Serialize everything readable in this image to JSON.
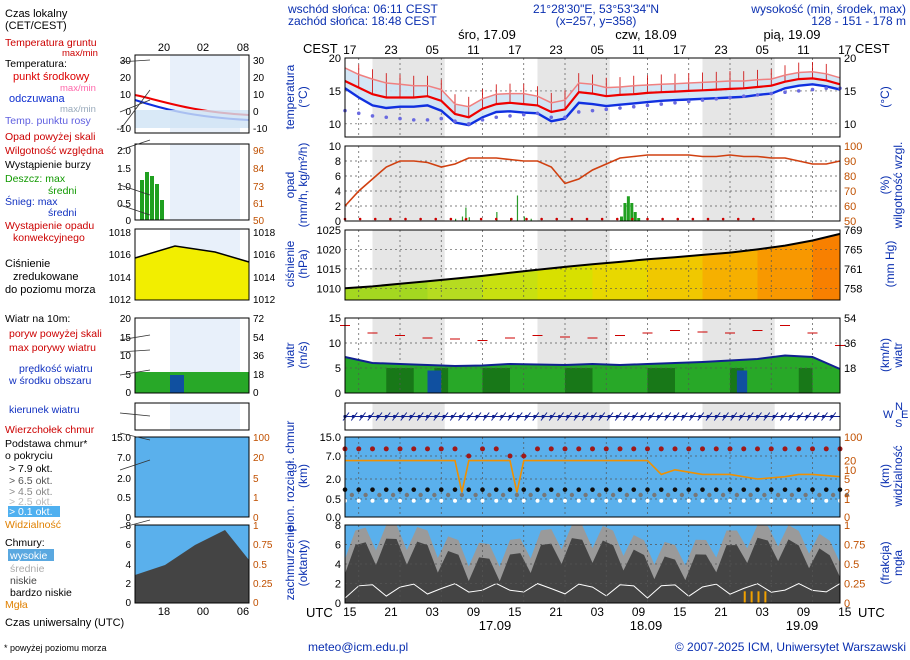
{
  "header": {
    "sunrise": "wschód słońca: 06:11 CEST",
    "sunset": "zachód słońca: 18:48 CEST",
    "coords": "21°28'30\"E, 53°53'34\"N",
    "grid": "(x=257, y=358)",
    "alt_label": "wysokość (min, środek, max)",
    "alt_values": "128 - 151 - 178 m"
  },
  "top_axis": {
    "tz": "CEST",
    "hours": [
      "17",
      "23",
      "05",
      "11",
      "17",
      "23",
      "05",
      "11",
      "17",
      "23",
      "05",
      "11",
      "17"
    ],
    "days": [
      "śro, 17.09",
      "czw, 18.09",
      "pią, 19.09"
    ]
  },
  "bottom_axis": {
    "tz": "UTC",
    "hours": [
      "15",
      "21",
      "03",
      "09",
      "15",
      "21",
      "03",
      "09",
      "15",
      "21",
      "03",
      "09",
      "15"
    ],
    "dates": [
      "17.09",
      "18.09",
      "19.09"
    ]
  },
  "footer": {
    "contact": "meteo@icm.edu.pl",
    "copyright": "© 2007-2025 ICM, Uniwersytet Warszawski",
    "note": "* powyżej poziomu morza"
  },
  "legend": {
    "local_time": "Czas lokalny",
    "local_time_tz": "(CET/CEST)",
    "lt_ticks": [
      "20",
      "02",
      "08"
    ],
    "soil": "Temperatura gruntu",
    "soil_mm": "max/min",
    "temp": "Temperatura:",
    "temp_mid": "punkt środkowy",
    "temp_mid_mm": "max/min",
    "apparent": "odczuwana",
    "apparent_mm": "max/min",
    "dew": "Temp. punktu rosy",
    "precip_above": "Opad powyżej skali",
    "humidity": "Wilgotność względna",
    "storm": "Wystąpienie burzy",
    "rain_max": "Deszcz: max",
    "rain_mean": "średni",
    "snow_max": "Śnieg:     max",
    "snow_mean": "średni",
    "convective_1": "Wystąpienie opadu",
    "convective_2": "konwekcyjnego",
    "pressure_1": "Ciśnienie",
    "pressure_2": "zredukowane",
    "pressure_3": "do poziomu morza",
    "wind": "Wiatr na 10m:",
    "gust_above": "poryw powyżej skali",
    "gust_max": "max porywy wiatru",
    "wind_speed_1": "prędkość wiatru",
    "wind_speed_2": "w środku obszaru",
    "wind_dir": "kierunek wiatru",
    "cloud_top": "Wierzchołek chmur",
    "cloud_base_1": "Podstawa chmur*",
    "cloud_base_2": "o pokryciu",
    "okt": [
      "> 7.9 okt.",
      "> 6.5 okt.",
      "> 4.5 okt.",
      "> 2.5 okt.",
      "> 0.1 okt."
    ],
    "visibility": "Widzialność",
    "clouds": "Chmury:",
    "cl_high": "wysokie",
    "cl_mid": "średnie",
    "cl_low": "niskie",
    "cl_vlow": "bardzo niskie",
    "fog": "Mgła",
    "utc": "Czas uniwersalny (UTC)",
    "ut_ticks": [
      "18",
      "00",
      "06"
    ]
  },
  "labels": {
    "temp_l": "temperatura",
    "temp_u": "(°C)",
    "prec_l": "opad",
    "prec_u": "(mm/h, kg/m²/h)",
    "hum_r": "wilgotność wzgl.",
    "hum_u": "(%)",
    "pres_l": "ciśnienie",
    "pres_u": "(hPa)",
    "pres_r": "(mm Hg)",
    "wind_l": "wiatr",
    "wind_u": "(m/s)",
    "wind_r": "wiatr",
    "wind_ru": "(km/h)",
    "cb_l1": "pion. rozciągł. chmur",
    "cb_l2": "(km)",
    "vis_r": "widzialność",
    "vis_ru": "(km)",
    "cc_l1": "zachmurzenie",
    "cc_l2": "(oktanty)",
    "cc_r1": "mgła",
    "cc_r2": "(frakcja)",
    "compass_w": "W",
    "compass_n": "N",
    "compass_s": "S",
    "compass_e": "E"
  },
  "chart_data": [
    {
      "type": "line",
      "title": "temperatura",
      "ylabel": "(°C)",
      "ylim": [
        8,
        20
      ],
      "yticks": [
        "10",
        "15",
        "20"
      ],
      "x_hours_from_start": [
        0,
        2,
        4,
        6,
        8,
        10,
        12,
        14,
        16,
        18,
        20,
        22,
        24,
        26,
        28,
        30,
        32,
        34,
        36,
        38,
        40,
        42,
        44,
        46,
        48,
        50,
        52,
        54,
        56,
        58,
        60,
        62,
        64,
        66,
        68,
        70,
        72
      ],
      "series": [
        {
          "name": "max",
          "values": [
            18.5,
            17.5,
            16.8,
            16.2,
            16.0,
            15.8,
            15.8,
            15.2,
            13.0,
            12.6,
            13.8,
            14.5,
            14.6,
            14.6,
            14.2,
            13.2,
            13.6,
            16.2,
            16.0,
            15.5,
            15.6,
            15.8,
            15.9,
            16.0,
            16.1,
            16.2,
            16.3,
            16.4,
            16.5,
            16.5,
            16.7,
            16.8,
            17.4,
            17.8,
            17.9,
            17.6,
            17.0
          ]
        },
        {
          "name": "punkt środkowy",
          "values": [
            16.5,
            15.5,
            14.5,
            14.0,
            14.0,
            14.0,
            14.2,
            13.5,
            11.5,
            11.0,
            12.3,
            13.0,
            13.2,
            13.0,
            12.8,
            11.8,
            12.2,
            14.8,
            14.6,
            14.2,
            14.4,
            14.5,
            14.7,
            14.8,
            14.9,
            15.0,
            15.1,
            15.2,
            15.3,
            15.4,
            15.6,
            15.8,
            16.4,
            16.8,
            16.9,
            16.6,
            16.0
          ]
        },
        {
          "name": "odczuwana",
          "values": [
            15.4,
            14.0,
            12.8,
            12.4,
            12.6,
            12.6,
            12.8,
            12.0,
            10.2,
            9.8,
            11.0,
            11.8,
            11.9,
            11.7,
            11.6,
            10.4,
            10.8,
            13.2,
            13.0,
            12.7,
            12.9,
            13.1,
            13.3,
            13.5,
            13.6,
            13.7,
            13.8,
            13.9,
            14.0,
            14.1,
            14.4,
            14.6,
            15.4,
            15.8,
            16.0,
            15.7,
            15.2
          ]
        },
        {
          "name": "punkt rosy",
          "values": [
            12.0,
            11.6,
            11.2,
            11.0,
            10.8,
            10.6,
            10.6,
            10.8,
            10.4,
            10.0,
            10.6,
            11.0,
            11.2,
            11.4,
            11.6,
            11.0,
            11.0,
            11.8,
            12.0,
            12.2,
            12.4,
            12.6,
            12.8,
            13.0,
            13.2,
            13.4,
            13.6,
            13.8,
            14.0,
            14.2,
            14.4,
            14.6,
            14.8,
            15.0,
            15.2,
            15.4,
            15.4
          ]
        }
      ]
    },
    {
      "type": "bar",
      "title": "opad",
      "ylabel": "(mm/h, kg/m²/h)",
      "ylim": [
        0,
        10
      ],
      "yticks": [
        "0",
        "2",
        "4",
        "6",
        "8",
        "10"
      ],
      "rain_bars_hour_value": [
        [
          40,
          0.6
        ],
        [
          40.5,
          2.4
        ],
        [
          41,
          3.3
        ],
        [
          41.5,
          2.4
        ],
        [
          42,
          1.2
        ],
        [
          42.5,
          0.4
        ]
      ],
      "humidity_right": {
        "ylim": [
          50,
          100
        ],
        "yticks": [
          "50",
          "60",
          "70",
          "80",
          "90",
          "100"
        ],
        "x_hours_from_start": [
          0,
          2,
          4,
          6,
          8,
          10,
          12,
          14,
          16,
          18,
          20,
          22,
          24,
          26,
          28,
          30,
          32,
          34,
          36,
          38,
          40,
          42,
          44,
          46,
          48,
          50,
          52,
          54,
          56,
          58,
          60,
          62,
          64,
          66,
          68,
          70,
          72
        ],
        "values": [
          60,
          70,
          78,
          86,
          90,
          90,
          89,
          86,
          88,
          92,
          92,
          92,
          91,
          90,
          90,
          86,
          75,
          78,
          84,
          88,
          92,
          93,
          94,
          94,
          94,
          94,
          93,
          93,
          94,
          93,
          93,
          92,
          92,
          90,
          88,
          88,
          90
        ]
      }
    },
    {
      "type": "area",
      "title": "ciśnienie",
      "ylabel": "(hPa)",
      "ylim": [
        1007,
        1025
      ],
      "yticks": [
        "1010",
        "1015",
        "1020",
        "1025"
      ],
      "right_ticks_mmhg": [
        "758",
        "761",
        "765",
        "769"
      ],
      "x_hours_from_start": [
        0,
        4,
        8,
        12,
        16,
        20,
        24,
        28,
        32,
        36,
        40,
        44,
        48,
        52,
        56,
        60,
        64,
        68,
        72
      ],
      "values": [
        1010.0,
        1010.5,
        1011.2,
        1011.8,
        1012.5,
        1013.2,
        1014.0,
        1014.8,
        1015.5,
        1016.2,
        1016.8,
        1017.5,
        1018.0,
        1018.6,
        1019.2,
        1020.0,
        1021.0,
        1022.3,
        1024.0
      ]
    },
    {
      "type": "line",
      "title": "wiatr",
      "ylabel": "(m/s)",
      "ylim": [
        0,
        15
      ],
      "yticks": [
        "0",
        "5",
        "10",
        "15"
      ],
      "right_ticks_kmh": [
        "18",
        "36",
        "54"
      ],
      "x_hours_from_start": [
        0,
        4,
        8,
        12,
        16,
        20,
        24,
        28,
        32,
        36,
        40,
        44,
        48,
        52,
        56,
        60,
        64,
        68,
        72
      ],
      "wind_speed": [
        7.2,
        6.0,
        5.8,
        5.6,
        5.4,
        5.5,
        5.8,
        5.7,
        5.6,
        5.8,
        5.6,
        5.8,
        6.0,
        6.2,
        6.5,
        6.8,
        7.5,
        7.2,
        4.8
      ],
      "gusts": [
        13.5,
        12.0,
        11.5,
        11.0,
        10.8,
        10.5,
        11.0,
        11.5,
        11.2,
        11.0,
        11.5,
        12.0,
        12.5,
        12.2,
        12.0,
        12.5,
        13.5,
        12.0,
        9.5
      ]
    },
    {
      "type": "scatter",
      "title": "pion. rozciągł. chmur",
      "ylabel": "(km)",
      "ylim": [
        0,
        15
      ],
      "yticks": [
        "0.0",
        "0.5",
        "2.0",
        "7.0",
        "15.0"
      ],
      "right_title": "widzialność",
      "right_ticks": [
        "0",
        "1",
        "2",
        "5",
        "10",
        "20",
        "100"
      ]
    },
    {
      "type": "area",
      "title": "zachmurzenie",
      "ylabel": "(oktanty)",
      "ylim": [
        0,
        8
      ],
      "yticks": [
        "0",
        "2",
        "4",
        "6",
        "8"
      ],
      "right_title": "mgła",
      "right_ticks": [
        "0",
        "0.25",
        "0.5",
        "0.75",
        "1"
      ]
    }
  ]
}
